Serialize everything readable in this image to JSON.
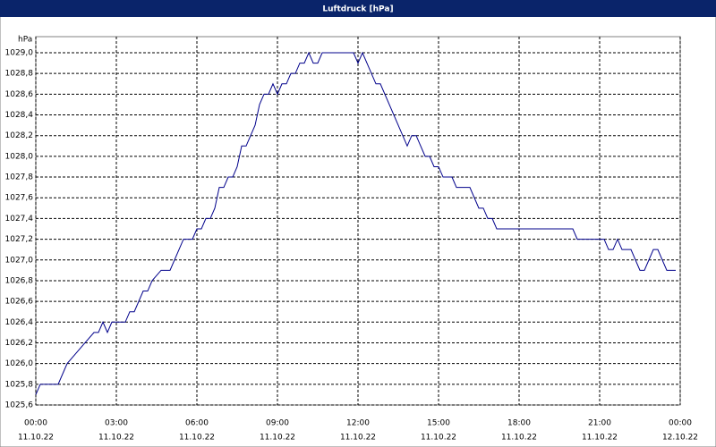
{
  "chart_data": {
    "type": "line",
    "title": "Luftdruck [hPa]",
    "y_label": "hPa",
    "x": [
      0,
      0.167,
      0.833,
      1.167,
      1.5,
      1.833,
      2.167,
      2.333,
      2.5,
      2.667,
      2.833,
      3.333,
      3.5,
      3.667,
      4,
      4.167,
      4.333,
      4.667,
      5,
      5.333,
      5.5,
      5.833,
      6,
      6.167,
      6.333,
      6.5,
      6.667,
      6.833,
      7,
      7.167,
      7.333,
      7.5,
      7.667,
      7.833,
      8.167,
      8.333,
      8.5,
      8.667,
      8.833,
      9,
      9.167,
      9.333,
      9.5,
      9.667,
      9.833,
      10,
      10.167,
      10.333,
      10.5,
      10.667,
      11.833,
      12,
      12.167,
      12.333,
      12.667,
      12.833,
      13.833,
      14,
      14.167,
      14.5,
      14.667,
      14.833,
      15,
      15.167,
      15.5,
      15.667,
      16.167,
      16.5,
      16.667,
      16.833,
      17,
      17.167,
      20,
      20.167,
      21.167,
      21.333,
      21.5,
      21.667,
      21.833,
      22.167,
      22.5,
      22.667,
      23,
      23.167,
      23.333,
      23.5,
      23.833
    ],
    "series": [
      {
        "color": "#00008b",
        "values": [
          1025.7,
          1025.8,
          1025.8,
          1026.0,
          1026.1,
          1026.2,
          1026.3,
          1026.3,
          1026.4,
          1026.3,
          1026.4,
          1026.4,
          1026.5,
          1026.5,
          1026.7,
          1026.7,
          1026.8,
          1026.9,
          1026.9,
          1027.1,
          1027.2,
          1027.2,
          1027.3,
          1027.3,
          1027.4,
          1027.4,
          1027.5,
          1027.7,
          1027.7,
          1027.8,
          1027.8,
          1027.9,
          1028.1,
          1028.1,
          1028.3,
          1028.5,
          1028.6,
          1028.6,
          1028.7,
          1028.6,
          1028.7,
          1028.7,
          1028.8,
          1028.8,
          1028.9,
          1028.9,
          1029.0,
          1028.9,
          1028.9,
          1029.0,
          1029.0,
          1028.9,
          1029.0,
          1028.9,
          1028.7,
          1028.7,
          1028.1,
          1028.2,
          1028.2,
          1028.0,
          1028.0,
          1027.9,
          1027.9,
          1027.8,
          1027.8,
          1027.7,
          1027.7,
          1027.5,
          1027.5,
          1027.4,
          1027.4,
          1027.3,
          1027.3,
          1027.2,
          1027.2,
          1027.1,
          1027.1,
          1027.2,
          1027.1,
          1027.1,
          1026.9,
          1026.9,
          1027.1,
          1027.1,
          1027.0,
          1026.9,
          1026.9
        ]
      }
    ],
    "xlim": [
      0,
      24
    ],
    "ylim": [
      1025.6,
      1029.0
    ],
    "xticks": [
      {
        "value": 0,
        "label": "00:00"
      },
      {
        "value": 3,
        "label": "03:00"
      },
      {
        "value": 6,
        "label": "06:00"
      },
      {
        "value": 9,
        "label": "09:00"
      },
      {
        "value": 12,
        "label": "12:00"
      },
      {
        "value": 15,
        "label": "15:00"
      },
      {
        "value": 18,
        "label": "18:00"
      },
      {
        "value": 21,
        "label": "21:00"
      },
      {
        "value": 24,
        "label": "00:00"
      }
    ],
    "xtick_dates": [
      "11.10.22",
      "11.10.22",
      "11.10.22",
      "11.10.22",
      "11.10.22",
      "11.10.22",
      "11.10.22",
      "11.10.22",
      "12.10.22"
    ],
    "yticks": [
      {
        "value": 1025.6,
        "label": "1025,6"
      },
      {
        "value": 1025.8,
        "label": "1025,8"
      },
      {
        "value": 1026.0,
        "label": "1026,0"
      },
      {
        "value": 1026.2,
        "label": "1026,2"
      },
      {
        "value": 1026.4,
        "label": "1026,4"
      },
      {
        "value": 1026.6,
        "label": "1026,6"
      },
      {
        "value": 1026.8,
        "label": "1026,8"
      },
      {
        "value": 1027.0,
        "label": "1027,0"
      },
      {
        "value": 1027.2,
        "label": "1027,2"
      },
      {
        "value": 1027.4,
        "label": "1027,4"
      },
      {
        "value": 1027.6,
        "label": "1027,6"
      },
      {
        "value": 1027.8,
        "label": "1027,8"
      },
      {
        "value": 1028.0,
        "label": "1028,0"
      },
      {
        "value": 1028.2,
        "label": "1028,2"
      },
      {
        "value": 1028.4,
        "label": "1028,4"
      },
      {
        "value": 1028.6,
        "label": "1028,6"
      },
      {
        "value": 1028.8,
        "label": "1028,8"
      },
      {
        "value": 1029.0,
        "label": "1029,0"
      }
    ],
    "grid": true
  }
}
